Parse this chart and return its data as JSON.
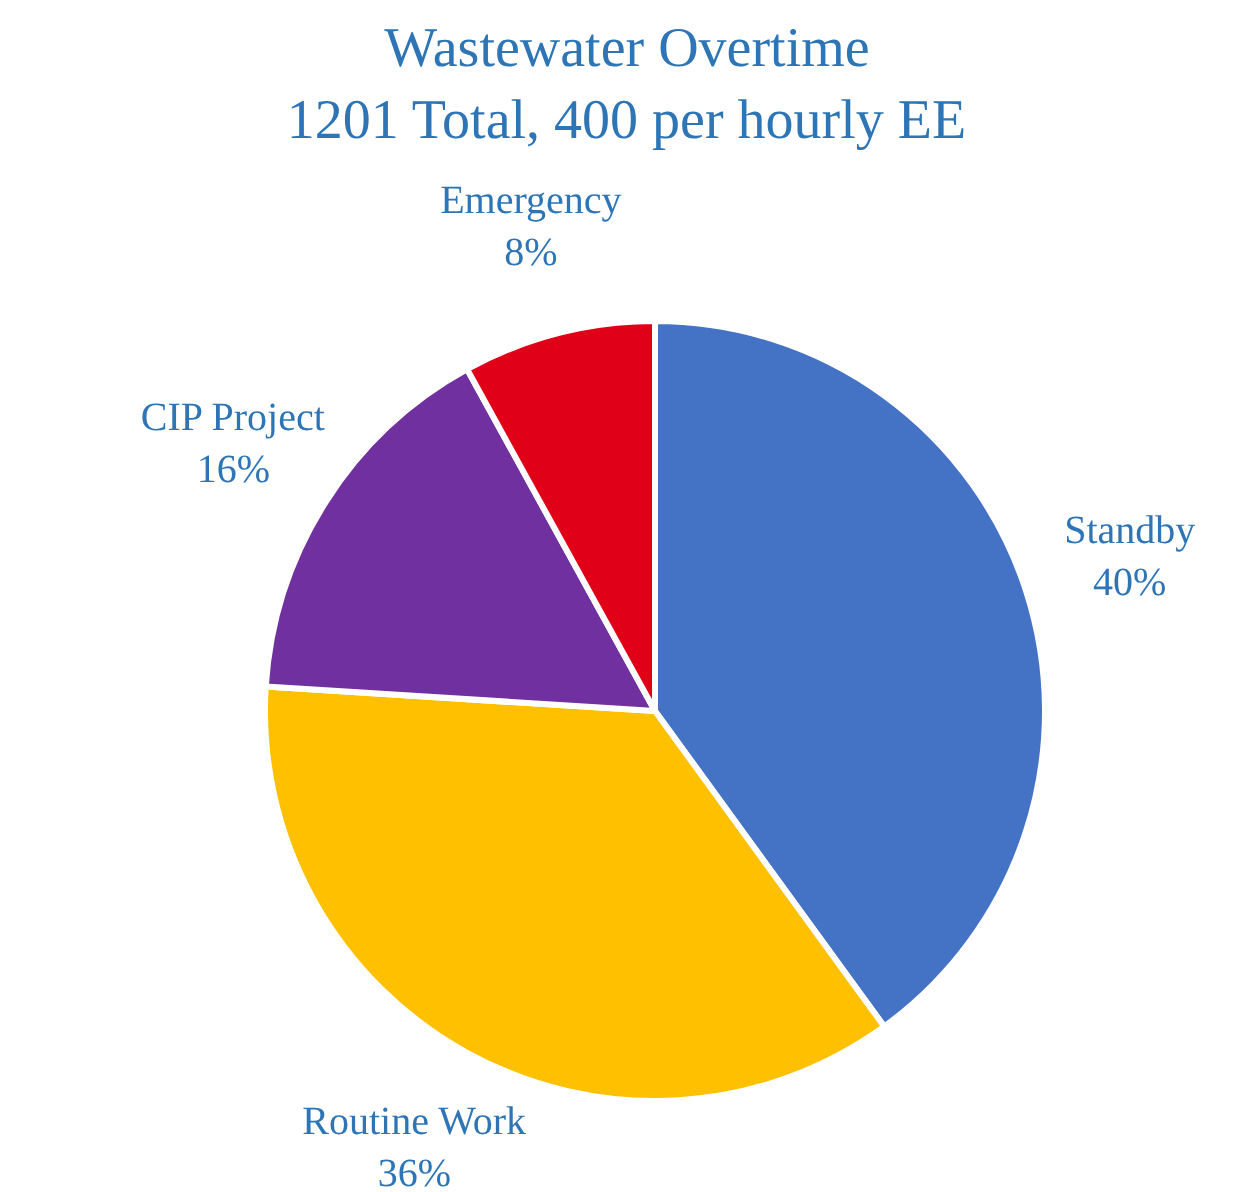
{
  "chart_data": {
    "type": "pie",
    "title": "Wastewater Overtime",
    "subtitle": "1201 Total, 400 per hourly EE",
    "categories": [
      "Standby",
      "Routine Work",
      "CIP Project",
      "Emergency"
    ],
    "values": [
      40,
      36,
      16,
      8
    ],
    "colors": [
      "#4472c4",
      "#ffc000",
      "#7030a0",
      "#e00018"
    ],
    "value_labels": [
      "40%",
      "36%",
      "16%",
      "8%"
    ]
  }
}
